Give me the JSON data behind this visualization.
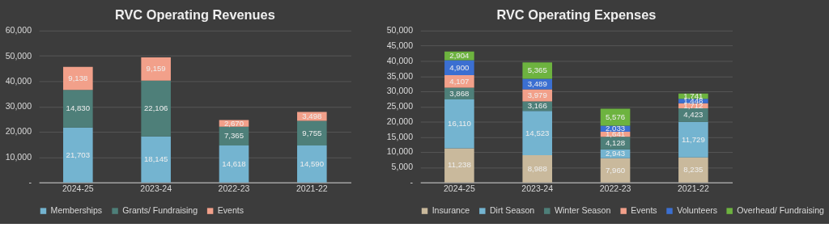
{
  "chart_data": [
    {
      "type": "bar",
      "title": "RVC Operating Revenues",
      "stacked": true,
      "grid": "y",
      "legend": "bottom",
      "categories": [
        "2024-25",
        "2023-24",
        "2022-23",
        "2021-22"
      ],
      "ylim": [
        0,
        60000
      ],
      "yticks": [
        {
          "value": 0,
          "label": "-"
        },
        {
          "value": 10000,
          "label": "10,000"
        },
        {
          "value": 20000,
          "label": "20,000"
        },
        {
          "value": 30000,
          "label": "30,000"
        },
        {
          "value": 40000,
          "label": "40,000"
        },
        {
          "value": 50000,
          "label": "50,000"
        },
        {
          "value": 60000,
          "label": "60,000"
        }
      ],
      "series": [
        {
          "name": "Memberships",
          "color": "#74b4d0",
          "values": [
            21703,
            18145,
            14618,
            14590
          ],
          "value_labels": [
            "21,703",
            "18,145",
            "14,618",
            "14,590"
          ]
        },
        {
          "name": "Grants/ Fundraising",
          "color": "#4e7f79",
          "values": [
            14830,
            22106,
            7365,
            9755
          ],
          "value_labels": [
            "14,830",
            "22,106",
            "7,365",
            "9,755"
          ]
        },
        {
          "name": "Events",
          "color": "#f2a08a",
          "values": [
            9138,
            9159,
            2670,
            3498
          ],
          "value_labels": [
            "9,138",
            "9,159",
            "2,670",
            "3,498"
          ]
        }
      ]
    },
    {
      "type": "bar",
      "title": "RVC Operating Expenses",
      "stacked": true,
      "grid": "y",
      "legend": "bottom",
      "categories": [
        "2024-25",
        "2023-24",
        "2022-23",
        "2021-22"
      ],
      "ylim": [
        0,
        50000
      ],
      "yticks": [
        {
          "value": 0,
          "label": "-"
        },
        {
          "value": 5000,
          "label": "5,000"
        },
        {
          "value": 10000,
          "label": "10,000"
        },
        {
          "value": 15000,
          "label": "15,000"
        },
        {
          "value": 20000,
          "label": "20,000"
        },
        {
          "value": 25000,
          "label": "25,000"
        },
        {
          "value": 30000,
          "label": "30,000"
        },
        {
          "value": 35000,
          "label": "35,000"
        },
        {
          "value": 40000,
          "label": "40,000"
        },
        {
          "value": 45000,
          "label": "45,000"
        },
        {
          "value": 50000,
          "label": "50,000"
        }
      ],
      "series": [
        {
          "name": "Insurance",
          "color": "#c9b99c",
          "values": [
            11238,
            8988,
            7960,
            8235
          ],
          "value_labels": [
            "11,238",
            "8,988",
            "7,960",
            "8,235"
          ]
        },
        {
          "name": "Dirt Season",
          "color": "#74b4d0",
          "values": [
            16110,
            14523,
            2943,
            11729
          ],
          "value_labels": [
            "16,110",
            "14,523",
            "2,943",
            "11,729"
          ]
        },
        {
          "name": "Winter Season",
          "color": "#4e7f79",
          "values": [
            3868,
            3166,
            4128,
            4423
          ],
          "value_labels": [
            "3,868",
            "3,166",
            "4,128",
            "4,423"
          ]
        },
        {
          "name": "Events",
          "color": "#f2a08a",
          "values": [
            4107,
            3979,
            1641,
            1712
          ],
          "value_labels": [
            "4,107",
            "3,979",
            "1,641",
            "1,712"
          ]
        },
        {
          "name": "Volunteers",
          "color": "#3b6fd1",
          "values": [
            4900,
            3489,
            2033,
            1448
          ],
          "value_labels": [
            "4,900",
            "3,489",
            "2,033",
            "1,448"
          ]
        },
        {
          "name": "Overhead/ Fundraising",
          "color": "#6db33f",
          "values": [
            2904,
            5365,
            5576,
            1741
          ],
          "value_labels": [
            "2,904",
            "5,365",
            "5,576",
            "1,741"
          ]
        }
      ]
    }
  ]
}
